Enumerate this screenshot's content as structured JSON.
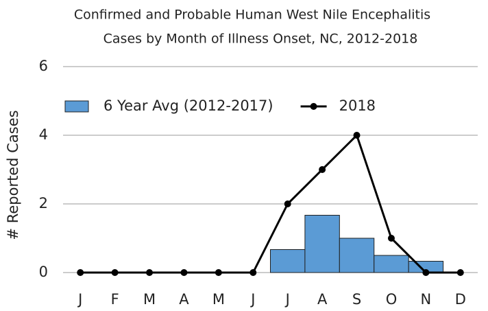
{
  "chart_data": {
    "type": "combo",
    "title": [
      "Confirmed and Probable Human West Nile Encephalitis",
      "Cases by Month of Illness Onset, NC, 2012-2018"
    ],
    "y_label": "# Reported Cases",
    "categories": [
      "J",
      "F",
      "M",
      "A",
      "M",
      "J",
      "J",
      "A",
      "S",
      "O",
      "N",
      "D"
    ],
    "series": [
      {
        "name": "6 Year Avg (2012-2017)",
        "type": "bar",
        "color": "#5b9bd5",
        "values": [
          0,
          0,
          0,
          0,
          0,
          0,
          0.67,
          1.67,
          1,
          0.5,
          0.33,
          0
        ]
      },
      {
        "name": "2018",
        "type": "line",
        "color": "#000000",
        "values": [
          0,
          0,
          0,
          0,
          0,
          0,
          2,
          3,
          4,
          1,
          0,
          0
        ]
      }
    ],
    "ylim": [
      0,
      6
    ],
    "yticks": [
      0,
      2,
      4,
      6
    ],
    "grid": true,
    "legend": "top-left"
  }
}
